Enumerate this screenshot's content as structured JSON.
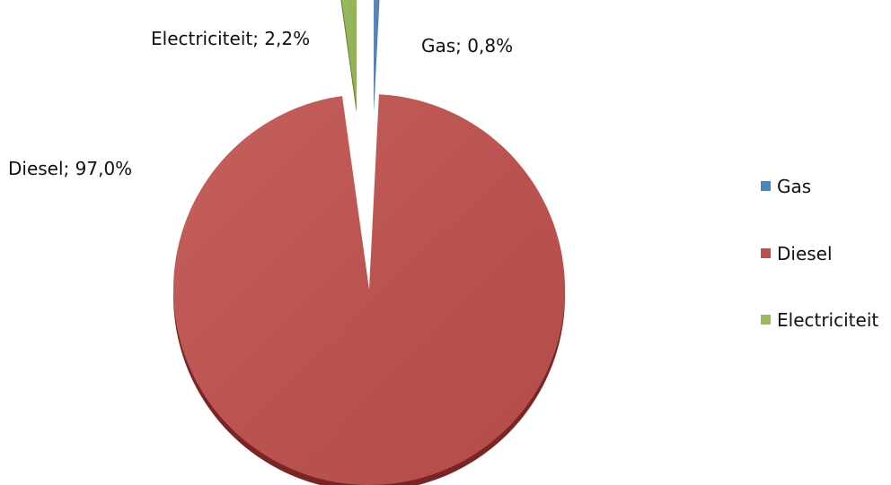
{
  "chart_data": {
    "type": "pie",
    "exploded": true,
    "slices": [
      {
        "name": "Gas",
        "value": 0.8,
        "label": "Gas; 0,8%",
        "color": "#4f81bd",
        "dark": "#3a6496"
      },
      {
        "name": "Diesel",
        "value": 97.0,
        "label": "Diesel; 97,0%",
        "color": "#c0504d",
        "dark": "#7a2523"
      },
      {
        "name": "Electriciteit",
        "value": 2.2,
        "label": "Electriciteit; 2,2%",
        "color": "#9bbb59",
        "dark": "#5f7a2c"
      }
    ],
    "legend": {
      "position": "right",
      "entries": [
        "Gas",
        "Diesel",
        "Electriciteit"
      ]
    }
  }
}
